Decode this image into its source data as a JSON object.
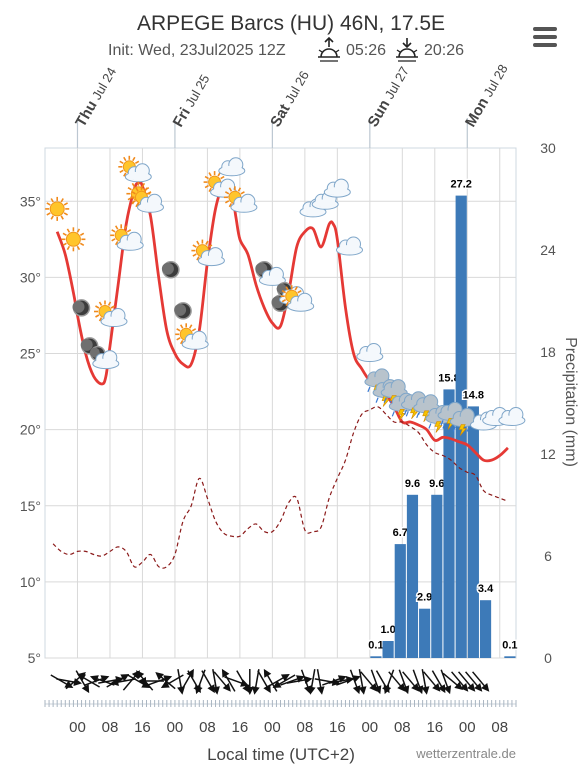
{
  "header": {
    "title": "ARPEGE Barcs (HU) 46N, 17.5E",
    "init": "Init: Wed, 23Jul2025 12Z",
    "sunrise": "05:26",
    "sunset": "20:26",
    "sunrise_icon": "sunrise-icon",
    "sunset_icon": "sunset-icon",
    "menu_icon": "hamburger-menu-icon"
  },
  "footer": {
    "xlabel": "Local time (UTC+2)",
    "credit": "wetterzentrale.de"
  },
  "colors": {
    "temperature": "#e53935",
    "dewpoint": "#8b1a1a",
    "precipitation": "#3d7ab8",
    "grid": "#d9d9d9"
  },
  "chart_data": {
    "type": "line",
    "x_unit": "hours since Thu Jul 24 00:00 local",
    "day_labels": [
      {
        "x": 0,
        "weekday": "Thu",
        "date": "Jul 24"
      },
      {
        "x": 24,
        "weekday": "Fri",
        "date": "Jul 25"
      },
      {
        "x": 48,
        "weekday": "Sat",
        "date": "Jul 26"
      },
      {
        "x": 72,
        "weekday": "Sun",
        "date": "Jul 27"
      },
      {
        "x": 96,
        "weekday": "Mon",
        "date": "Jul 28"
      }
    ],
    "x_ticks": [
      {
        "x": 0,
        "label": "00"
      },
      {
        "x": 8,
        "label": "08"
      },
      {
        "x": 16,
        "label": "16"
      },
      {
        "x": 24,
        "label": "00"
      },
      {
        "x": 32,
        "label": "08"
      },
      {
        "x": 40,
        "label": "16"
      },
      {
        "x": 48,
        "label": "00"
      },
      {
        "x": 56,
        "label": "08"
      },
      {
        "x": 64,
        "label": "16"
      },
      {
        "x": 72,
        "label": "00"
      },
      {
        "x": 80,
        "label": "08"
      },
      {
        "x": 88,
        "label": "16"
      },
      {
        "x": 96,
        "label": "00"
      },
      {
        "x": 104,
        "label": "08"
      }
    ],
    "xlim": [
      -8,
      108
    ],
    "y_left": {
      "label": "",
      "ticks": [
        "35°",
        "30°",
        "25°",
        "20°",
        "15°",
        "10°",
        "5°"
      ],
      "values": [
        35,
        30,
        25,
        20,
        15,
        10,
        5
      ],
      "lim": [
        5,
        38.5
      ]
    },
    "y_right": {
      "label": "Precipitation (mm)",
      "ticks": [
        "30",
        "24",
        "18",
        "12",
        "6",
        "0"
      ],
      "values": [
        30,
        24,
        18,
        12,
        6,
        0
      ],
      "lim": [
        0,
        30
      ]
    },
    "grid": true,
    "series": [
      {
        "name": "",
        "kind": "temperature",
        "x": [
          -5,
          -3,
          -1,
          0,
          2,
          4,
          6,
          7,
          8,
          10,
          12,
          14,
          15,
          16,
          18,
          20,
          22,
          24,
          26,
          28,
          30,
          32,
          34,
          36,
          38,
          39,
          40,
          42,
          44,
          46,
          48,
          50,
          52,
          54,
          56,
          58,
          60,
          62,
          63,
          64,
          66,
          68,
          70,
          72,
          74,
          76,
          78,
          80,
          82,
          84,
          86,
          88,
          90,
          92,
          94,
          96,
          98,
          100,
          102,
          104,
          106
        ],
        "values": [
          33.0,
          31.5,
          29.0,
          27.5,
          25.0,
          23.5,
          23.0,
          23.5,
          25.5,
          29.5,
          33.5,
          35.8,
          36.2,
          36.0,
          34.0,
          30.0,
          26.5,
          25.0,
          24.3,
          24.3,
          26.5,
          31.0,
          34.5,
          36.0,
          35.5,
          34.0,
          32.5,
          31.5,
          29.5,
          28.0,
          27.0,
          26.8,
          29.0,
          32.0,
          33.0,
          33.2,
          32.0,
          33.5,
          33.5,
          32.5,
          28.0,
          25.0,
          24.0,
          23.2,
          22.8,
          22.3,
          21.5,
          20.5,
          20.5,
          20.3,
          20.0,
          19.3,
          19.5,
          19.4,
          19.2,
          19.0,
          18.5,
          18.0,
          18.0,
          18.3,
          18.8
        ]
      },
      {
        "name": "",
        "kind": "dewpoint",
        "x": [
          -6,
          -4,
          -2,
          0,
          2,
          4,
          6,
          8,
          10,
          12,
          14,
          16,
          18,
          20,
          22,
          24,
          26,
          28,
          30,
          32,
          34,
          36,
          38,
          40,
          42,
          44,
          46,
          48,
          50,
          52,
          54,
          56,
          58,
          60,
          62,
          64,
          66,
          68,
          70,
          72,
          74,
          76,
          78,
          80,
          82,
          84,
          86,
          88,
          90,
          92,
          94,
          96,
          98,
          100,
          102,
          104,
          106
        ],
        "values": [
          12.5,
          12.0,
          11.8,
          12.0,
          12.0,
          11.8,
          11.7,
          12.0,
          12.3,
          12.0,
          11.0,
          11.3,
          11.8,
          11.0,
          11.0,
          11.8,
          14.0,
          15.0,
          16.8,
          15.5,
          14.0,
          13.2,
          13.0,
          13.0,
          13.5,
          13.8,
          13.3,
          13.3,
          14.0,
          15.2,
          15.5,
          13.4,
          13.3,
          13.6,
          15.5,
          16.8,
          18.0,
          19.8,
          21.0,
          21.3,
          21.5,
          21.0,
          20.5,
          20.5,
          20.2,
          19.8,
          19.0,
          18.5,
          18.3,
          18.0,
          17.5,
          17.2,
          17.0,
          16.0,
          15.7,
          15.5,
          15.3
        ]
      }
    ],
    "precipitation": {
      "bar_width_hours": 3,
      "x": [
        72,
        75,
        78,
        81,
        84,
        87,
        90,
        93,
        96,
        99,
        102,
        105
      ],
      "values": [
        0.1,
        1.0,
        6.7,
        9.6,
        2.9,
        9.6,
        15.8,
        27.2,
        14.8,
        3.4,
        0,
        0.1
      ],
      "labels": [
        "0.1",
        "1.0",
        "6.7",
        "9.6",
        "2.9",
        "9.6",
        "15.8",
        "27.2",
        "14.8",
        "3.4",
        "",
        "0.1"
      ]
    },
    "weather_icons": [
      {
        "x": -5,
        "temp": 34.5,
        "icon": "sun-icon"
      },
      {
        "x": -1,
        "temp": 32.5,
        "icon": "sun-icon"
      },
      {
        "x": 1,
        "temp": 28.0,
        "icon": "moon-icon"
      },
      {
        "x": 3,
        "temp": 25.5,
        "icon": "moon-icon"
      },
      {
        "x": 6,
        "temp": 24.8,
        "icon": "moon-cloud-icon"
      },
      {
        "x": 8,
        "temp": 27.5,
        "icon": "sun-cloud-icon"
      },
      {
        "x": 12,
        "temp": 32.5,
        "icon": "sun-cloud-icon"
      },
      {
        "x": 14,
        "temp": 37.0,
        "icon": "sun-cloud-icon"
      },
      {
        "x": 15,
        "temp": 35.5,
        "icon": "sun-icon"
      },
      {
        "x": 17,
        "temp": 35.0,
        "icon": "sun-cloud-icon"
      },
      {
        "x": 23,
        "temp": 30.5,
        "icon": "moon-icon"
      },
      {
        "x": 26,
        "temp": 27.8,
        "icon": "moon-icon"
      },
      {
        "x": 28,
        "temp": 26.0,
        "icon": "sun-cloud-icon"
      },
      {
        "x": 32,
        "temp": 31.5,
        "icon": "sun-cloud-icon"
      },
      {
        "x": 35,
        "temp": 36.0,
        "icon": "sun-cloud-icon"
      },
      {
        "x": 38,
        "temp": 37.2,
        "icon": "cloud-icon"
      },
      {
        "x": 40,
        "temp": 35.0,
        "icon": "sun-cloud-icon"
      },
      {
        "x": 46,
        "temp": 30.5,
        "icon": "moon-icon"
      },
      {
        "x": 48,
        "temp": 30.0,
        "icon": "cloud-icon"
      },
      {
        "x": 50,
        "temp": 28.3,
        "icon": "moon-icon"
      },
      {
        "x": 52,
        "temp": 29.0,
        "icon": "moon-cloud-icon"
      },
      {
        "x": 54,
        "temp": 28.5,
        "icon": "sun-cloud-icon"
      },
      {
        "x": 58,
        "temp": 34.5,
        "icon": "cloud-icon"
      },
      {
        "x": 61,
        "temp": 35.0,
        "icon": "cloud-icon"
      },
      {
        "x": 64,
        "temp": 35.8,
        "icon": "cloud-icon"
      },
      {
        "x": 67,
        "temp": 32.0,
        "icon": "cloud-icon"
      },
      {
        "x": 72,
        "temp": 25.0,
        "icon": "cloud-icon"
      },
      {
        "x": 74,
        "temp": 23.2,
        "icon": "thunderstorm-icon"
      },
      {
        "x": 76,
        "temp": 22.5,
        "icon": "thunderstorm-icon"
      },
      {
        "x": 78,
        "temp": 22.5,
        "icon": "thunderstorm-icon"
      },
      {
        "x": 80,
        "temp": 21.6,
        "icon": "thunderstorm-icon"
      },
      {
        "x": 83,
        "temp": 21.7,
        "icon": "thunderstorm-icon"
      },
      {
        "x": 86,
        "temp": 21.5,
        "icon": "thunderstorm-icon"
      },
      {
        "x": 89,
        "temp": 20.8,
        "icon": "thunderstorm-icon"
      },
      {
        "x": 92,
        "temp": 21.0,
        "icon": "thunderstorm-icon"
      },
      {
        "x": 95,
        "temp": 20.6,
        "icon": "thunderstorm-icon"
      },
      {
        "x": 100,
        "temp": 20.5,
        "icon": "cloud-icon"
      },
      {
        "x": 103,
        "temp": 20.8,
        "icon": "cloud-icon"
      },
      {
        "x": 107,
        "temp": 20.8,
        "icon": "cloud-icon"
      }
    ],
    "wind_directions_deg": [
      300,
      280,
      230,
      330,
      120,
      250,
      110,
      260,
      240,
      80,
      220,
      300,
      140,
      90,
      250,
      130,
      60,
      350,
      210,
      330,
      20,
      330,
      350,
      320,
      150,
      290,
      330,
      0,
      10,
      330,
      150,
      240,
      60,
      250,
      260,
      340,
      10,
      350,
      280,
      250,
      260,
      250,
      340,
      350,
      320,
      340,
      330,
      20,
      320,
      340,
      320,
      340,
      350,
      320,
      330,
      340,
      310,
      320,
      320,
      320,
      320
    ]
  }
}
